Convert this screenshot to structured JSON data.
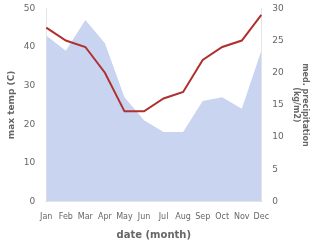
{
  "chart_data": {
    "type": "line",
    "categories": [
      "Jan",
      "Feb",
      "Mar",
      "Apr",
      "May",
      "Jun",
      "Jul",
      "Aug",
      "Sep",
      "Oct",
      "Nov",
      "Dec"
    ],
    "series": [
      {
        "type": "area",
        "color": "#c8d4f0",
        "values": [
          43,
          39,
          47,
          41,
          27,
          21,
          18,
          18,
          26,
          27,
          24,
          39
        ]
      },
      {
        "type": "line",
        "color": "#b03030",
        "axis": "y2",
        "values": [
          27,
          25,
          24,
          20,
          14,
          14,
          16,
          17,
          22,
          24,
          25,
          29
        ]
      }
    ],
    "xlabel": "date (month)",
    "ylabel": "max temp (C)",
    "y2label": "med. precipitation\n(kg/m2)",
    "ylim": [
      0,
      50
    ],
    "yticks": [
      0,
      10,
      20,
      30,
      40,
      50
    ],
    "y2lim": [
      0,
      30
    ],
    "y2ticks": [
      0,
      5,
      10,
      15,
      20,
      25,
      30
    ],
    "grid": false
  }
}
